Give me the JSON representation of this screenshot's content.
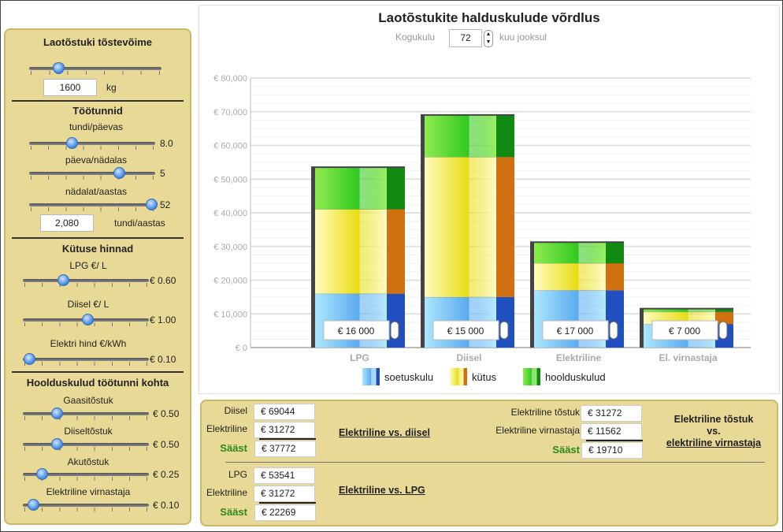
{
  "left": {
    "capacity": {
      "title": "Laotõstuki tõstevõime",
      "value": "1600",
      "unit": "kg",
      "fraction": 0.22
    },
    "hours": {
      "title": "Töötunnid",
      "sliders": [
        {
          "label": "tundi/päevas",
          "value": "8.0",
          "fraction": 0.34
        },
        {
          "label": "päeva/nädalas",
          "value": "5",
          "fraction": 0.71
        },
        {
          "label": "nädalat/aastas",
          "value": "52",
          "fraction": 0.97
        }
      ],
      "total": "2,080",
      "total_unit": "tundi/aastas"
    },
    "fuel": {
      "title": "Kütuse hinnad",
      "sliders": [
        {
          "label": "LPG €/ L",
          "value": "€ 0.60",
          "fraction": 0.32
        },
        {
          "label": "Diisel €/ L",
          "value": "€ 1.00",
          "fraction": 0.51
        },
        {
          "label": "Elektri hind €/kWh",
          "value": "€ 0.10",
          "fraction": 0.05
        }
      ]
    },
    "maintenance": {
      "title": "Hoolduskulud töötunni kohta",
      "sliders": [
        {
          "label": "Gaasitõstuk",
          "value": "€ 0.50",
          "fraction": 0.27
        },
        {
          "label": "Diiseltõstuk",
          "value": "€ 0.50",
          "fraction": 0.27
        },
        {
          "label": "Akutõstuk",
          "value": "€ 0.25",
          "fraction": 0.15
        },
        {
          "label": "Elektriline virnastaja",
          "value": "€ 0.10",
          "fraction": 0.08
        }
      ]
    }
  },
  "chart_data": {
    "type": "bar",
    "stacked": true,
    "title": "Laotõstukite halduskulude võrdlus",
    "period": {
      "prefix": "Kogukulu",
      "value": "72",
      "suffix": "kuu jooksul"
    },
    "categories": [
      "LPG",
      "Diisel",
      "Elektriline",
      "El. virnastaja"
    ],
    "series": [
      {
        "name": "soetuskulu",
        "values": [
          16000,
          15000,
          17000,
          7000
        ],
        "colors": [
          "#aee8ff",
          "#5aaaf0",
          "#2050c0"
        ]
      },
      {
        "name": "kütus",
        "values": [
          25061,
          41564,
          8032,
          3600
        ],
        "colors": [
          "#fffcc0",
          "#e8dc10",
          "#d07010"
        ]
      },
      {
        "name": "hoolduskulud",
        "values": [
          12480,
          12480,
          6240,
          962
        ],
        "colors": [
          "#90ec50",
          "#30c820",
          "#108a10"
        ]
      }
    ],
    "purchase_inputs": [
      "€ 16 000",
      "€ 15 000",
      "€ 17 000",
      "€ 7 000"
    ],
    "ylim": [
      0,
      80000
    ],
    "yticks": [
      "€ 0",
      "€ 10,000",
      "€ 20,000",
      "€ 30,000",
      "€ 40,000",
      "€ 50,000",
      "€ 60,000",
      "€ 70,000",
      "€ 80,000"
    ],
    "grid": true,
    "legend": "bottom"
  },
  "bottom": {
    "diesel": {
      "a_label": "Diisel",
      "a": "€ 69044",
      "b_label": "Elektriline",
      "b": "€ 31272",
      "s_label": "Sääst",
      "s": "€ 37772",
      "link": "Elektriline vs. diisel"
    },
    "lpg": {
      "a_label": "LPG",
      "a": "€ 53541",
      "b_label": "Elektriline",
      "b": "€ 31272",
      "s_label": "Sääst",
      "s": "€ 22269",
      "link": "Elektriline vs. LPG"
    },
    "stacker": {
      "a_label": "Elektriline tõstuk",
      "a": "€ 31272",
      "b_label": "Elektriline virnastaja",
      "b": "€ 11562",
      "s_label": "Sääst",
      "s": "€ 19710",
      "link1": "Elektriline tõstuk",
      "link2": "vs.",
      "link3": "elektriline virnastaja"
    }
  }
}
